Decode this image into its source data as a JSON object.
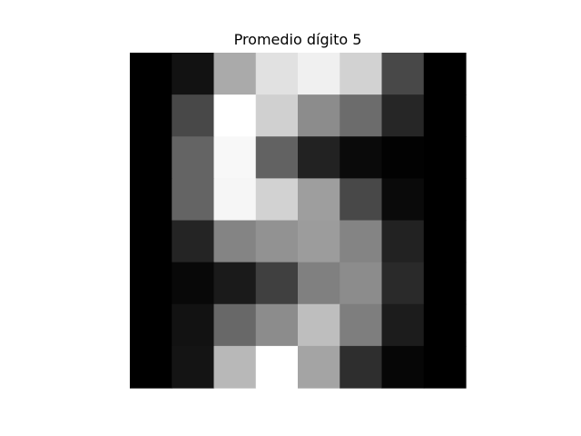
{
  "chart_data": {
    "type": "heatmap",
    "title": "Promedio dígito 5",
    "colormap": "gray",
    "value_range": [
      0,
      255
    ],
    "axes_visible": false,
    "rows": 8,
    "cols": 8,
    "values": [
      [
        0,
        18,
        170,
        225,
        240,
        210,
        72,
        0
      ],
      [
        0,
        72,
        255,
        208,
        140,
        108,
        38,
        0
      ],
      [
        0,
        100,
        248,
        98,
        34,
        10,
        2,
        0
      ],
      [
        0,
        100,
        246,
        210,
        158,
        72,
        10,
        0
      ],
      [
        0,
        36,
        132,
        146,
        156,
        132,
        34,
        0
      ],
      [
        0,
        8,
        26,
        64,
        128,
        140,
        42,
        0
      ],
      [
        0,
        18,
        104,
        140,
        190,
        126,
        28,
        0
      ],
      [
        0,
        20,
        184,
        255,
        164,
        46,
        6,
        0
      ]
    ]
  }
}
